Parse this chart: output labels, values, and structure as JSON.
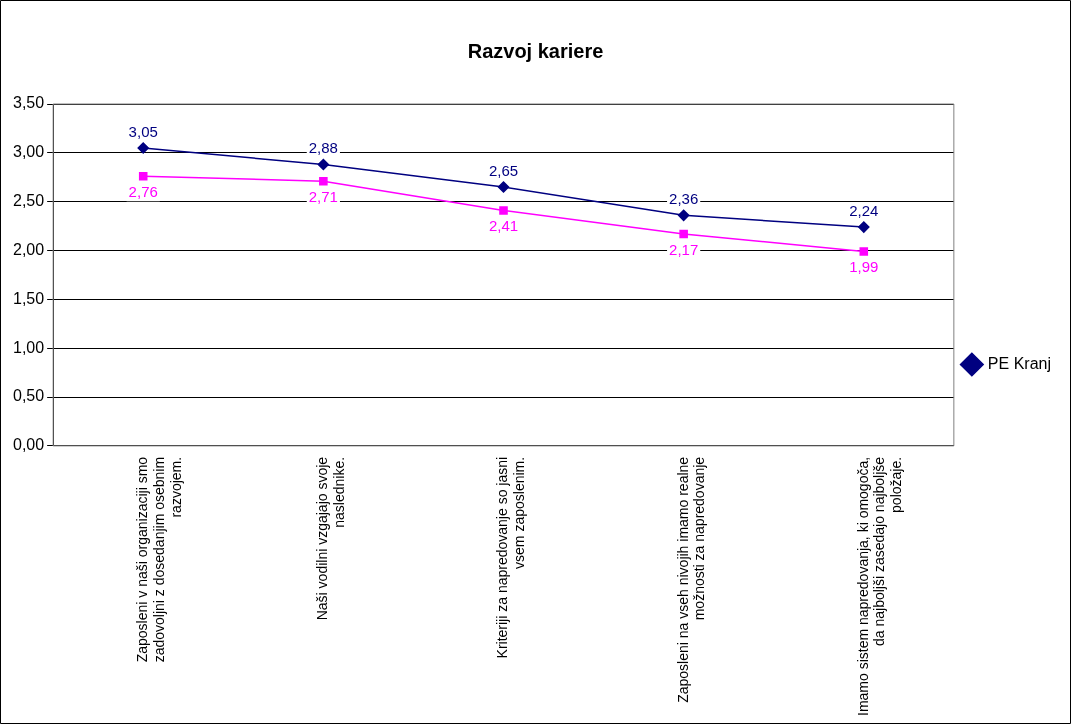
{
  "chart_data": {
    "type": "line",
    "title": "Razvoj kariere",
    "categories": [
      "Zaposleni v naši organizaciji smo zadovoljni z dosedanjim osebnim razvojem.",
      "Naši vodilni vzgajajo svoje naslednike.",
      "Kriteriji za napredovanje so jasni vsem zaposlenim.",
      "Zaposleni na vseh nivojih imamo realne možnosti za napredovanje",
      "Imamo sistem napredovanja, ki omogoča, da najboljši zasedajo najboljše položaje."
    ],
    "series": [
      {
        "name": "PE Kranj",
        "color": "#000080",
        "marker": "diamond",
        "values": [
          3.05,
          2.88,
          2.65,
          2.36,
          2.24
        ],
        "value_labels": [
          "3,05",
          "2,88",
          "2,65",
          "2,36",
          "2,24"
        ]
      },
      {
        "color": "#ff00ff",
        "marker": "square",
        "values": [
          2.76,
          2.71,
          2.41,
          2.17,
          1.99
        ],
        "value_labels": [
          "2,76",
          "2,71",
          "2,41",
          "2,17",
          "1,99"
        ]
      }
    ],
    "ylim": [
      0,
      3.5
    ],
    "yticks": [
      {
        "value": 0,
        "label": "0,00"
      },
      {
        "value": 0.5,
        "label": "0,50"
      },
      {
        "value": 1,
        "label": "1,00"
      },
      {
        "value": 1.5,
        "label": "1,50"
      },
      {
        "value": 2,
        "label": "2,00"
      },
      {
        "value": 2.5,
        "label": "2,50"
      },
      {
        "value": 3,
        "label": "3,00"
      },
      {
        "value": 3.5,
        "label": "3,50"
      }
    ],
    "grid": "y",
    "legend": "right",
    "line_style": "solid"
  }
}
